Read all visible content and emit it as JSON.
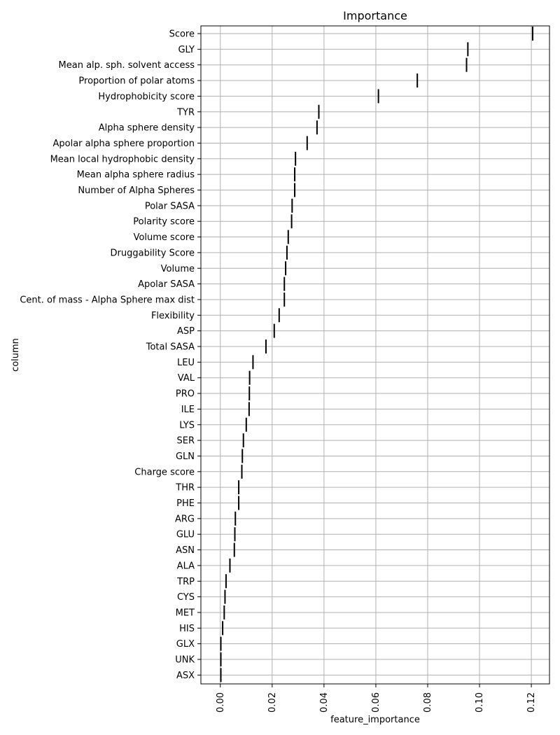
{
  "chart_data": {
    "type": "scatter",
    "marker": "vertical-line",
    "title": "Importance",
    "xlabel": "feature_importance",
    "ylabel": "column",
    "xlim": [
      -0.0075,
      0.127
    ],
    "xticks": [
      0.0,
      0.02,
      0.04,
      0.06,
      0.08,
      0.1,
      0.12
    ],
    "xtick_labels": [
      "0.00",
      "0.02",
      "0.04",
      "0.06",
      "0.08",
      "0.10",
      "0.12"
    ],
    "grid": true,
    "marker_color": "#000000",
    "grid_color": "#b0b0b0",
    "categories": [
      "Score",
      "GLY",
      "Mean alp. sph. solvent access",
      "Proportion of polar atoms",
      "Hydrophobicity score",
      "TYR",
      "Alpha sphere density",
      "Apolar alpha sphere proportion",
      "Mean local hydrophobic density",
      "Mean alpha sphere radius",
      "Number of Alpha Spheres",
      "Polar SASA",
      "Polarity score",
      "Volume score",
      "Druggability Score",
      "Volume",
      "Apolar SASA",
      "Cent. of mass - Alpha Sphere max dist",
      "Flexibility",
      "ASP",
      "Total SASA",
      "LEU",
      "VAL",
      "PRO",
      "ILE",
      "LYS",
      "SER",
      "GLN",
      "Charge score",
      "THR",
      "PHE",
      "ARG",
      "GLU",
      "ASN",
      "ALA",
      "TRP",
      "CYS",
      "MET",
      "HIS",
      "GLX",
      "UNK",
      "ASX"
    ],
    "values": [
      0.1205,
      0.0955,
      0.095,
      0.076,
      0.061,
      0.038,
      0.0373,
      0.0335,
      0.029,
      0.0287,
      0.0287,
      0.0277,
      0.0275,
      0.0262,
      0.0257,
      0.0252,
      0.0247,
      0.0247,
      0.0227,
      0.0208,
      0.0176,
      0.0126,
      0.0113,
      0.0112,
      0.0111,
      0.01,
      0.0089,
      0.0085,
      0.0083,
      0.0071,
      0.0071,
      0.0058,
      0.0056,
      0.0054,
      0.0037,
      0.0022,
      0.0018,
      0.0015,
      0.0009,
      0.0002,
      0.0002,
      0.0002
    ]
  }
}
